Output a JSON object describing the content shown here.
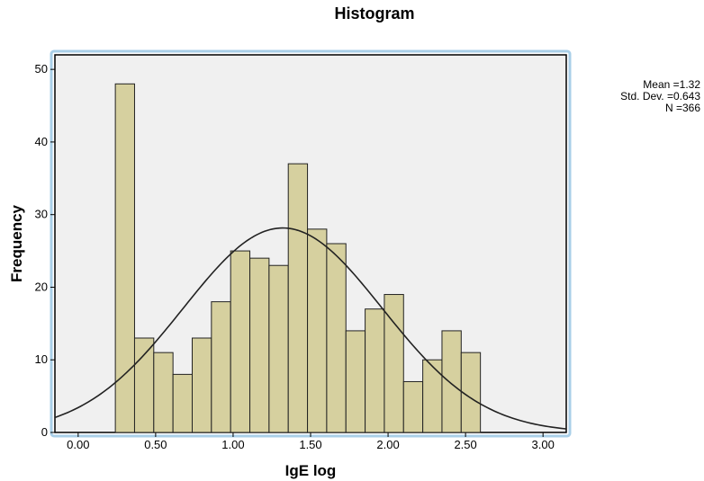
{
  "chart_data": {
    "type": "bar",
    "title": "Histogram",
    "xlabel": "IgE log",
    "ylabel": "Frequency",
    "xlim": [
      -0.15,
      3.15
    ],
    "ylim": [
      0,
      52
    ],
    "x_ticks": [
      "0.00",
      "0.50",
      "1.00",
      "1.50",
      "2.00",
      "2.50",
      "3.00"
    ],
    "y_ticks": [
      "0",
      "10",
      "20",
      "30",
      "40",
      "50"
    ],
    "bin_width": 0.124,
    "bins": [
      {
        "start": 0.24,
        "count": 48
      },
      {
        "start": 0.364,
        "count": 13
      },
      {
        "start": 0.488,
        "count": 11
      },
      {
        "start": 0.612,
        "count": 8
      },
      {
        "start": 0.736,
        "count": 13
      },
      {
        "start": 0.86,
        "count": 18
      },
      {
        "start": 0.984,
        "count": 25
      },
      {
        "start": 1.108,
        "count": 24
      },
      {
        "start": 1.232,
        "count": 23
      },
      {
        "start": 1.356,
        "count": 37
      },
      {
        "start": 1.48,
        "count": 28
      },
      {
        "start": 1.604,
        "count": 26
      },
      {
        "start": 1.728,
        "count": 14
      },
      {
        "start": 1.852,
        "count": 17
      },
      {
        "start": 1.976,
        "count": 19
      },
      {
        "start": 2.1,
        "count": 7
      },
      {
        "start": 2.224,
        "count": 10
      },
      {
        "start": 2.348,
        "count": 14
      },
      {
        "start": 2.472,
        "count": 11
      }
    ],
    "normal_curve": {
      "mean": 1.32,
      "sd": 0.643,
      "n": 366
    },
    "legend_placement": "right",
    "grid": false,
    "bar_color": "#d6d09f",
    "bar_stroke": "#222222",
    "plot_background": "#f0f0f0",
    "frame_highlight": "#a9cfe8"
  },
  "stats": {
    "mean": "Mean =1.32",
    "std_dev": "Std. Dev. =0.643",
    "n": "N =366"
  }
}
